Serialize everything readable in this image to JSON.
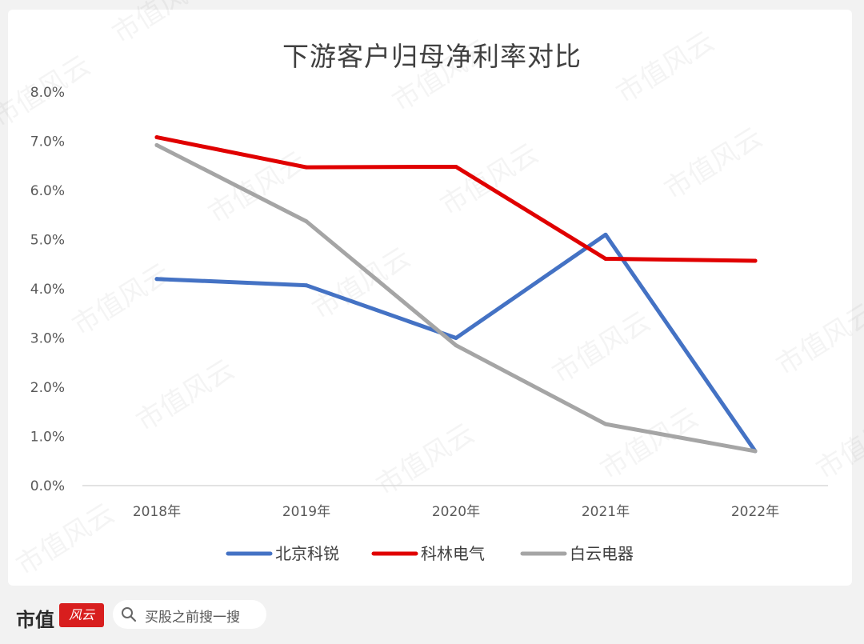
{
  "chart_data": {
    "type": "line",
    "title": "下游客户归母净利率对比",
    "categories": [
      "2018年",
      "2019年",
      "2020年",
      "2021年",
      "2022年"
    ],
    "y_tick_labels": [
      "0.0%",
      "1.0%",
      "2.0%",
      "3.0%",
      "4.0%",
      "5.0%",
      "6.0%",
      "7.0%",
      "8.0%"
    ],
    "ylim": [
      0,
      8
    ],
    "grid": false,
    "legend_position": "bottom",
    "series": [
      {
        "name": "北京科锐",
        "color": "#4472c4",
        "values": [
          4.2,
          4.07,
          3.0,
          5.1,
          0.7
        ]
      },
      {
        "name": "科林电气",
        "color": "#e00000",
        "values": [
          7.08,
          6.47,
          6.48,
          4.61,
          4.57
        ]
      },
      {
        "name": "白云电器",
        "color": "#a5a5a5",
        "values": [
          6.92,
          5.37,
          2.85,
          1.25,
          0.7
        ]
      }
    ]
  },
  "watermark": {
    "text": "市值风云"
  },
  "footer": {
    "brand": "市值",
    "brand_badge": "风云",
    "search_icon": "search-icon",
    "search_placeholder": "买股之前搜一搜"
  }
}
